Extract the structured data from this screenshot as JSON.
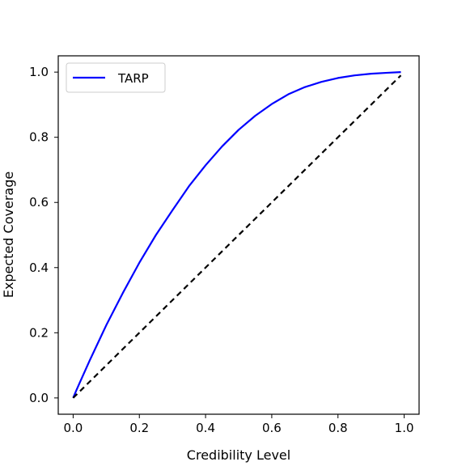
{
  "chart_data": {
    "type": "line",
    "title": "",
    "xlabel": "Credibility Level",
    "ylabel": "Expected Coverage",
    "xlim": [
      -0.045,
      1.045
    ],
    "ylim": [
      -0.05,
      1.05
    ],
    "xticks": [
      0.0,
      0.2,
      0.4,
      0.6,
      0.8,
      1.0
    ],
    "yticks": [
      0.0,
      0.2,
      0.4,
      0.6,
      0.8,
      1.0
    ],
    "xtick_labels": [
      "0.0",
      "0.2",
      "0.4",
      "0.6",
      "0.8",
      "1.0"
    ],
    "ytick_labels": [
      "0.0",
      "0.2",
      "0.4",
      "0.6",
      "0.8",
      "1.0"
    ],
    "grid": false,
    "legend": {
      "position": "upper-left",
      "entries": [
        "TARP"
      ]
    },
    "series": [
      {
        "name": "TARP",
        "color": "#0000ff",
        "style": "solid",
        "x": [
          0.0,
          0.01,
          0.02,
          0.05,
          0.1,
          0.15,
          0.2,
          0.25,
          0.3,
          0.35,
          0.4,
          0.45,
          0.5,
          0.55,
          0.6,
          0.65,
          0.7,
          0.75,
          0.8,
          0.85,
          0.9,
          0.95,
          0.99
        ],
        "y": [
          0.0,
          0.024,
          0.047,
          0.115,
          0.223,
          0.322,
          0.415,
          0.5,
          0.576,
          0.65,
          0.714,
          0.772,
          0.823,
          0.866,
          0.902,
          0.932,
          0.954,
          0.97,
          0.982,
          0.99,
          0.995,
          0.998,
          1.0
        ]
      },
      {
        "name": "",
        "color": "#000000",
        "style": "dashed",
        "x": [
          0.0,
          0.99
        ],
        "y": [
          0.0,
          0.99
        ]
      }
    ]
  }
}
